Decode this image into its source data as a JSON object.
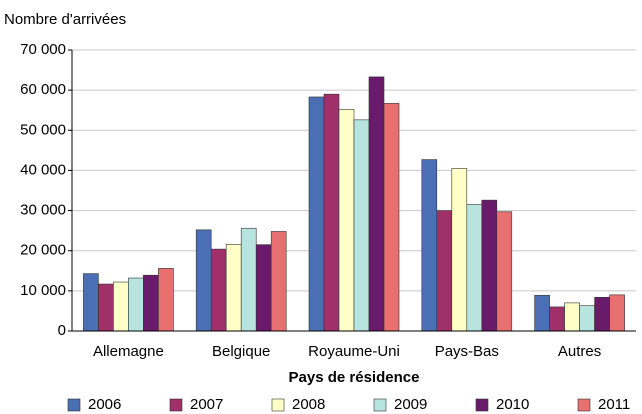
{
  "chart_data": {
    "type": "bar",
    "y_axis_label": "Nombre d'arrivées",
    "x_axis_label": "Pays de résidence",
    "categories": [
      "Allemagne",
      "Belgique",
      "Royaume-Uni",
      "Pays-Bas",
      "Autres"
    ],
    "series": [
      {
        "name": "2006",
        "color": "#4a6fb5",
        "values": [
          14300,
          25200,
          58300,
          42700,
          8900
        ]
      },
      {
        "name": "2007",
        "color": "#a0306a",
        "values": [
          11700,
          20400,
          59000,
          30000,
          6000
        ]
      },
      {
        "name": "2008",
        "color": "#ffffc8",
        "values": [
          12200,
          21600,
          55200,
          40500,
          7000
        ]
      },
      {
        "name": "2009",
        "color": "#b8e4e0",
        "values": [
          13200,
          25600,
          52600,
          31500,
          6300
        ]
      },
      {
        "name": "2010",
        "color": "#6a1a6a",
        "values": [
          13900,
          21500,
          63300,
          32600,
          8400
        ]
      },
      {
        "name": "2011",
        "color": "#e87070",
        "values": [
          15600,
          24800,
          56700,
          29700,
          9000
        ]
      }
    ],
    "ylim": [
      0,
      70000
    ],
    "yticks": [
      0,
      {
        "value": 10000,
        "label": "10 000"
      },
      {
        "value": 20000,
        "label": "20 000"
      },
      {
        "value": 30000,
        "label": "30 000"
      },
      {
        "value": 40000,
        "label": "40 000"
      },
      {
        "value": 50000,
        "label": "50 000"
      },
      {
        "value": 60000,
        "label": "60 000"
      },
      {
        "value": 70000,
        "label": "70 000"
      }
    ],
    "grid": true,
    "legend": "bottom"
  }
}
